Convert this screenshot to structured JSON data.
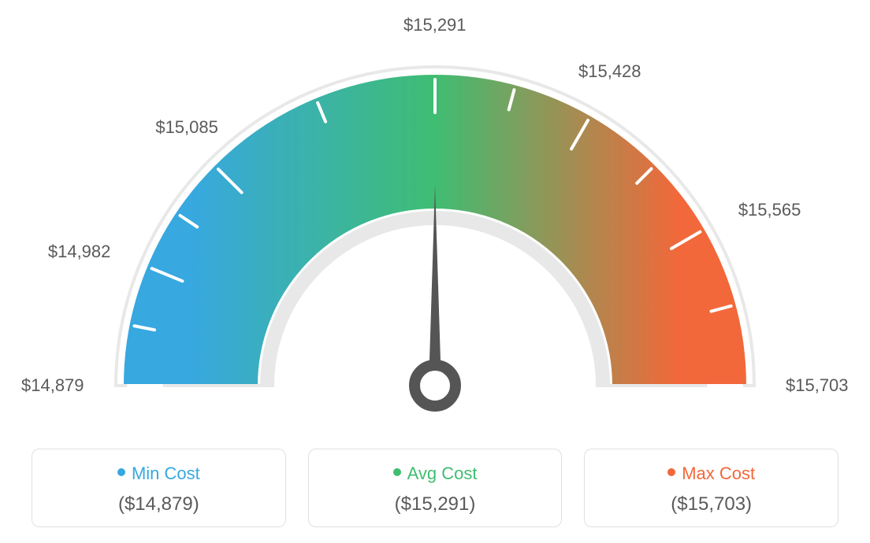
{
  "gauge": {
    "type": "gauge",
    "min": 14879,
    "max": 15703,
    "value": 15291,
    "outer_radius": 395,
    "inner_radius": 225,
    "track_stroke": "#e8e8e8",
    "label_color": "#5a5a5a",
    "label_fontsize": 22,
    "needle_color": "#555555",
    "tick_color": "#ffffff",
    "colors": {
      "min": "#37a8e0",
      "mid": "#3fbd72",
      "max": "#f2683a"
    },
    "ticks": [
      {
        "value": 14879,
        "label": "$14,879",
        "major": true
      },
      {
        "value": 14982,
        "label": "$14,982",
        "major": true
      },
      {
        "value": 15085,
        "label": "$15,085",
        "major": true
      },
      {
        "value": 15291,
        "label": "$15,291",
        "major": true
      },
      {
        "value": 15428,
        "label": "$15,428",
        "major": true
      },
      {
        "value": 15565,
        "label": "$15,565",
        "major": true
      },
      {
        "value": 15703,
        "label": "$15,703",
        "major": true
      }
    ]
  },
  "legend": {
    "min": {
      "label": "Min Cost",
      "value": "($14,879)",
      "color": "#37a8e0"
    },
    "avg": {
      "label": "Avg Cost",
      "value": "($15,291)",
      "color": "#3fbd72"
    },
    "max": {
      "label": "Max Cost",
      "value": "($15,703)",
      "color": "#f2683a"
    }
  }
}
